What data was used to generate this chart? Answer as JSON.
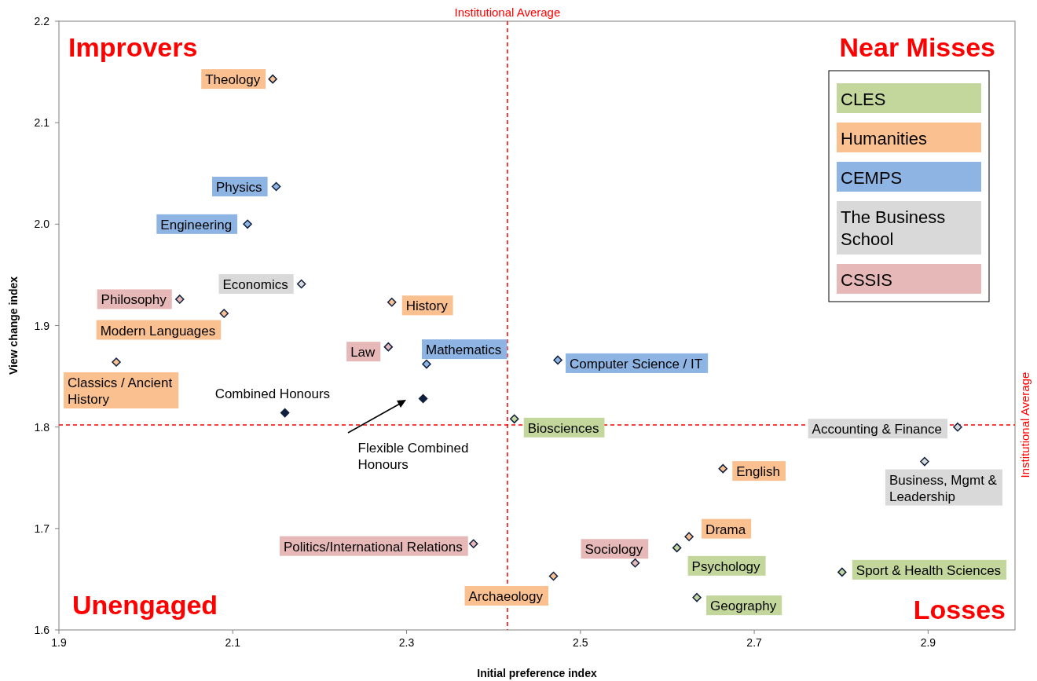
{
  "chart_data": {
    "type": "scatter",
    "xlabel": "Initial preference index",
    "ylabel": "View change index",
    "xlim": [
      1.9,
      3.0
    ],
    "ylim": [
      1.6,
      2.2
    ],
    "xticks": [
      1.9,
      2.1,
      2.3,
      2.5,
      2.7,
      2.9
    ],
    "yticks": [
      1.6,
      1.7,
      1.8,
      1.9,
      {
        "value": 2,
        "label": "2.0"
      },
      2.1,
      2.2
    ],
    "marker": "diamond",
    "legend": "top right",
    "grid": false,
    "series": [
      {
        "name": "CLES",
        "color": "#c3d69b",
        "x": [
          2.424,
          2.611,
          2.634,
          2.801
        ],
        "values": [
          1.808,
          1.681,
          1.632,
          1.657
        ],
        "value_labels": [
          "Biosciences",
          "Psychology",
          "Geography",
          "Sport & Health Sciences"
        ]
      },
      {
        "name": "Humanities",
        "color": "#fac090",
        "x": [
          2.146,
          2.09,
          1.966,
          2.283,
          2.664,
          2.625,
          2.469
        ],
        "values": [
          2.143,
          1.912,
          1.864,
          1.923,
          1.759,
          1.692,
          1.653
        ],
        "value_labels": [
          "Theology",
          "Modern Languages",
          "Classics / Ancient History",
          "History",
          "English",
          "Drama",
          "Archaeology"
        ]
      },
      {
        "name": "CEMPS",
        "color": "#8eb4e3",
        "x": [
          2.15,
          2.117,
          2.323,
          2.474
        ],
        "values": [
          2.037,
          2.0,
          1.862,
          1.866
        ],
        "value_labels": [
          "Physics",
          "Engineering",
          "Mathematics",
          "Computer Science / IT"
        ]
      },
      {
        "name": "The Business School",
        "color": "#d9d9d9",
        "x": [
          2.179,
          2.934,
          2.896
        ],
        "values": [
          1.941,
          1.8,
          1.766
        ],
        "value_labels": [
          "Economics",
          "Accounting & Finance",
          "Business, Mgmt & Leadership"
        ]
      },
      {
        "name": "CSSIS",
        "color": "#e6b9b8",
        "x": [
          2.039,
          2.279,
          2.377,
          2.563
        ],
        "values": [
          1.926,
          1.879,
          1.685,
          1.666
        ],
        "value_labels": [
          "Philosophy",
          "Law",
          "Politics/International Relations",
          "Sociology"
        ]
      },
      {
        "x": [
          2.16,
          2.319
        ],
        "values": [
          1.814,
          1.828
        ],
        "value_labels": [
          "Combined Honours",
          "Flexible Combined Honours"
        ]
      }
    ],
    "ref_lines": [
      {
        "axis": "x",
        "value": 2.416,
        "label": "Institutional Average",
        "color": "#ff0000",
        "line_style": "dashed"
      },
      {
        "axis": "y",
        "value": 1.802,
        "label": "Institutional Average",
        "color": "#ff0000",
        "line_style": "dashed"
      }
    ],
    "annotations": [
      "Improvers",
      "Near Misses",
      "Unengaged",
      "Losses"
    ]
  }
}
